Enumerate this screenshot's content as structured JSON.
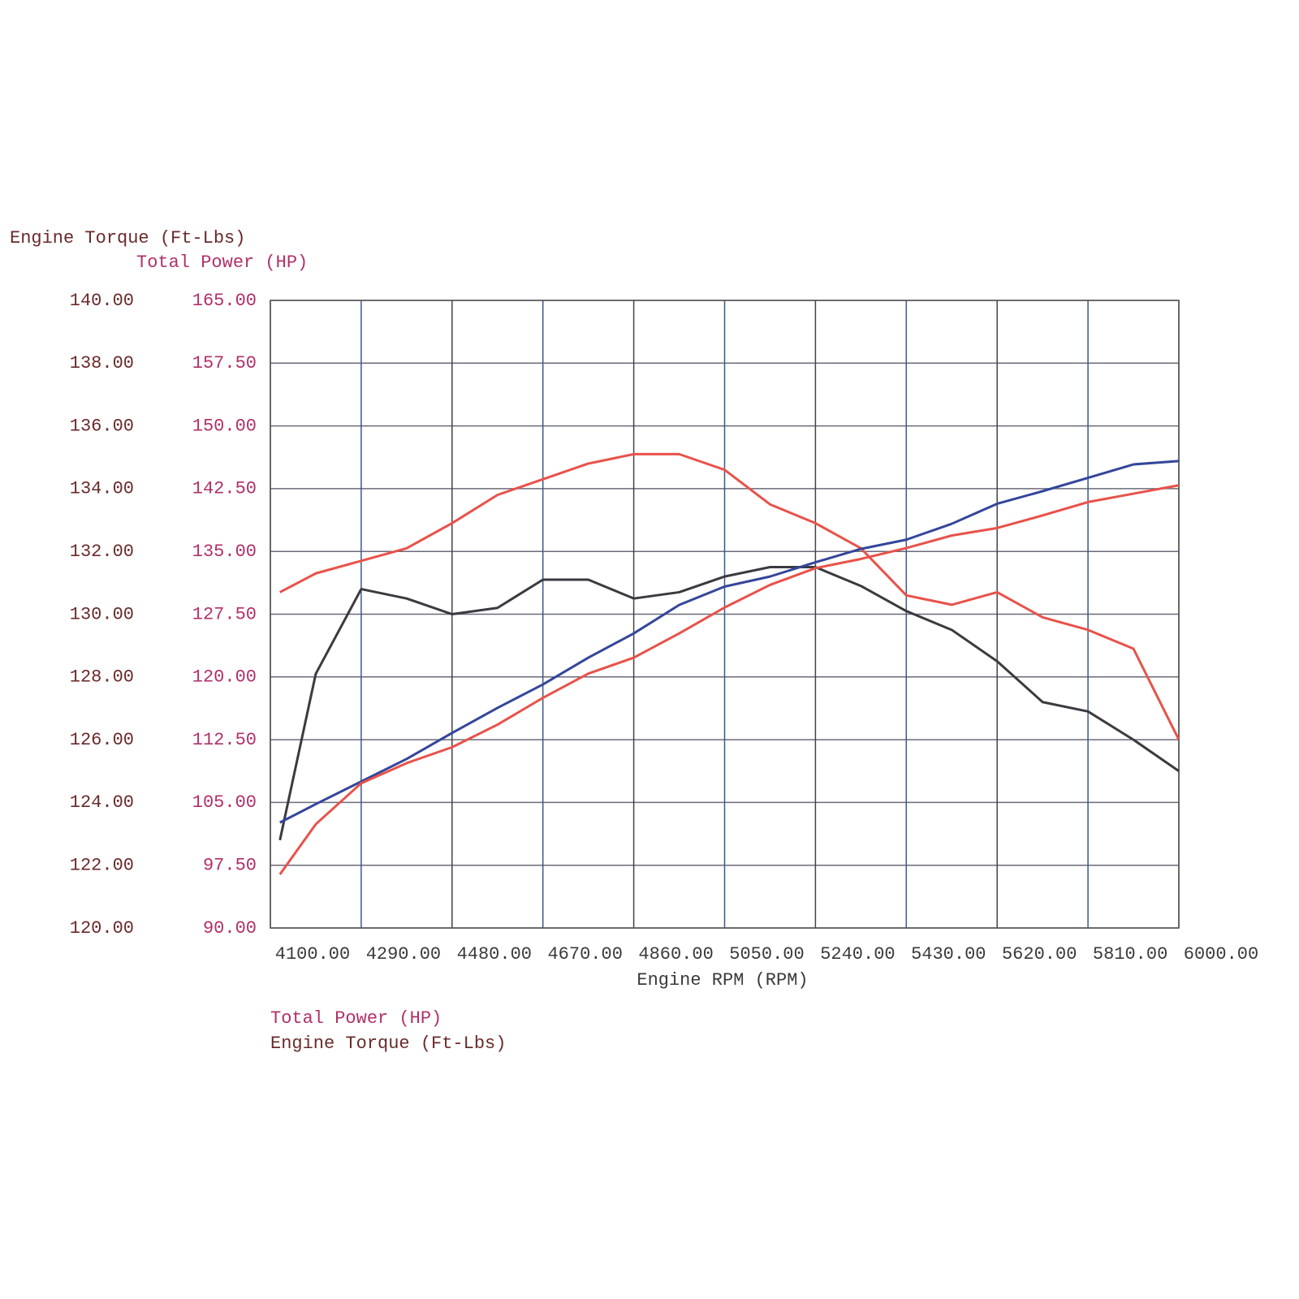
{
  "chart_data": {
    "type": "line",
    "y_axis_title": "Engine Torque (Ft-Lbs)",
    "y2_axis_title": "Total Power (HP)",
    "x_axis_title": "Engine RPM (RPM)",
    "legend": [
      {
        "label": "Total Power (HP)",
        "color": "#b0306a"
      },
      {
        "label": "Engine Torque (Ft-Lbs)",
        "color": "#6a2a2a"
      }
    ],
    "grid": true,
    "xlim": [
      4100,
      6000
    ],
    "xticks": [
      {
        "value": 4100,
        "label": "4100.00"
      },
      {
        "value": 4290,
        "label": "4290.00"
      },
      {
        "value": 4480,
        "label": "4480.00"
      },
      {
        "value": 4670,
        "label": "4670.00"
      },
      {
        "value": 4860,
        "label": "4860.00"
      },
      {
        "value": 5050,
        "label": "5050.00"
      },
      {
        "value": 5240,
        "label": "5240.00"
      },
      {
        "value": 5430,
        "label": "5430.00"
      },
      {
        "value": 5620,
        "label": "5620.00"
      },
      {
        "value": 5810,
        "label": "5810.00"
      },
      {
        "value": 6000,
        "label": "6000.00"
      }
    ],
    "ylim": [
      120,
      140
    ],
    "yticks": [
      {
        "value": 120,
        "label": "120.00"
      },
      {
        "value": 122,
        "label": "122.00"
      },
      {
        "value": 124,
        "label": "124.00"
      },
      {
        "value": 126,
        "label": "126.00"
      },
      {
        "value": 128,
        "label": "128.00"
      },
      {
        "value": 130,
        "label": "130.00"
      },
      {
        "value": 132,
        "label": "132.00"
      },
      {
        "value": 134,
        "label": "134.00"
      },
      {
        "value": 136,
        "label": "136.00"
      },
      {
        "value": 138,
        "label": "138.00"
      },
      {
        "value": 140,
        "label": "140.00"
      }
    ],
    "y2lim": [
      90,
      165
    ],
    "y2ticks": [
      {
        "value": 90,
        "label": "90.00"
      },
      {
        "value": 97.5,
        "label": "97.50"
      },
      {
        "value": 105,
        "label": "105.00"
      },
      {
        "value": 112.5,
        "label": "112.50"
      },
      {
        "value": 120,
        "label": "120.00"
      },
      {
        "value": 127.5,
        "label": "127.50"
      },
      {
        "value": 135,
        "label": "135.00"
      },
      {
        "value": 142.5,
        "label": "142.50"
      },
      {
        "value": 150,
        "label": "150.00"
      },
      {
        "value": 157.5,
        "label": "157.50"
      },
      {
        "value": 165,
        "label": "165.00"
      }
    ],
    "x": [
      4120,
      4195,
      4290,
      4385,
      4480,
      4575,
      4670,
      4765,
      4860,
      4955,
      5050,
      5145,
      5240,
      5335,
      5430,
      5525,
      5620,
      5715,
      5810,
      5905,
      6000
    ],
    "series": [
      {
        "color": "#3a3a40",
        "axis": "y",
        "values": [
          122.8,
          128.1,
          130.8,
          130.5,
          130.0,
          130.2,
          131.1,
          131.1,
          130.5,
          130.7,
          131.2,
          131.5,
          131.5,
          130.9,
          130.1,
          129.5,
          128.5,
          127.2,
          126.9,
          126.0,
          125.0
        ]
      },
      {
        "color": "#e8524a",
        "axis": "y",
        "values": [
          130.7,
          131.3,
          131.7,
          132.1,
          132.9,
          133.8,
          134.3,
          134.8,
          135.1,
          135.1,
          134.6,
          133.5,
          132.9,
          132.1,
          130.6,
          130.3,
          130.7,
          129.9,
          129.5,
          128.9,
          126.0
        ]
      },
      {
        "color": "#34469a",
        "axis": "y2",
        "values": [
          102.6,
          104.8,
          107.5,
          110.2,
          113.3,
          116.3,
          119.1,
          122.3,
          125.2,
          128.6,
          130.8,
          132.0,
          133.7,
          135.3,
          136.4,
          138.3,
          140.7,
          142.2,
          143.8,
          145.4,
          145.8
        ]
      },
      {
        "color": "#e8524a",
        "axis": "y2",
        "values": [
          96.4,
          102.4,
          107.3,
          109.7,
          111.6,
          114.3,
          117.5,
          120.4,
          122.3,
          125.2,
          128.3,
          131.0,
          133.0,
          134.1,
          135.4,
          136.9,
          137.8,
          139.3,
          140.9,
          141.9,
          142.9
        ]
      }
    ]
  }
}
